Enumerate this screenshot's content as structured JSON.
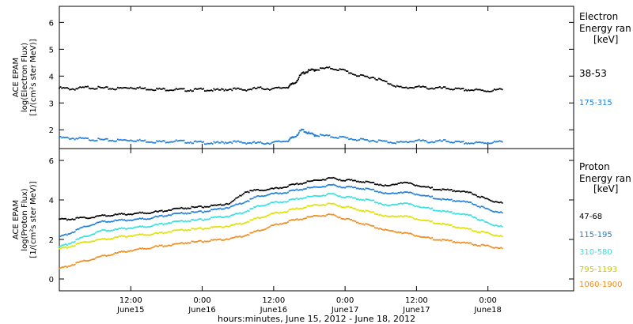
{
  "page": {
    "x_axis_label": "hours:minutes, June 15, 2012 - June 18, 2012"
  },
  "x_ticks": [
    {
      "t": 0.5,
      "time": "12:00",
      "date": "June15"
    },
    {
      "t": 1.0,
      "time": "0:00",
      "date": "June16"
    },
    {
      "t": 1.5,
      "time": "12:00",
      "date": "June16"
    },
    {
      "t": 2.0,
      "time": "0:00",
      "date": "June17"
    },
    {
      "t": 2.5,
      "time": "12:00",
      "date": "June17"
    },
    {
      "t": 3.0,
      "time": "0:00",
      "date": "June18"
    }
  ],
  "chart_data": [
    {
      "type": "scatter",
      "title": "",
      "xlabel": "hours:minutes, June 15, 2012 - June 18, 2012",
      "ylabel_lines": [
        "ACE EPAM",
        "log(Electron Flux)",
        "[1/(cm²s ster MeV)]"
      ],
      "legend_title_lines": [
        "Electron",
        "Energy ran",
        "[keV]"
      ],
      "x_unit": "days since June 15, 2012 00:00",
      "xlim": [
        0.0,
        3.6
      ],
      "ylim": [
        1.3,
        6.6
      ],
      "yticks": [
        2,
        3,
        4,
        5,
        6
      ],
      "grid": false,
      "series": [
        {
          "name": "38-53",
          "color": "#000000",
          "x": [
            0.0,
            0.1,
            0.2,
            0.3,
            0.4,
            0.5,
            0.6,
            0.7,
            0.8,
            0.9,
            1.0,
            1.1,
            1.2,
            1.3,
            1.4,
            1.5,
            1.6,
            1.65,
            1.7,
            1.75,
            1.8,
            1.9,
            2.0,
            2.1,
            2.2,
            2.3,
            2.4,
            2.5,
            2.6,
            2.7,
            2.8,
            2.9,
            3.0,
            3.1
          ],
          "values": [
            3.55,
            3.52,
            3.58,
            3.55,
            3.53,
            3.58,
            3.53,
            3.51,
            3.5,
            3.48,
            3.5,
            3.47,
            3.52,
            3.49,
            3.55,
            3.52,
            3.6,
            3.75,
            4.1,
            4.2,
            4.25,
            4.3,
            4.2,
            4.0,
            3.95,
            3.75,
            3.55,
            3.6,
            3.55,
            3.55,
            3.5,
            3.48,
            3.45,
            3.5
          ]
        },
        {
          "name": "175-315",
          "color": "#1f7fd8",
          "x": [
            0.0,
            0.1,
            0.2,
            0.3,
            0.4,
            0.5,
            0.6,
            0.7,
            0.8,
            0.9,
            1.0,
            1.1,
            1.2,
            1.3,
            1.4,
            1.5,
            1.6,
            1.65,
            1.7,
            1.75,
            1.8,
            1.9,
            2.0,
            2.1,
            2.2,
            2.3,
            2.4,
            2.5,
            2.6,
            2.7,
            2.8,
            2.9,
            3.0,
            3.1
          ],
          "values": [
            1.7,
            1.68,
            1.65,
            1.62,
            1.6,
            1.62,
            1.58,
            1.55,
            1.58,
            1.55,
            1.52,
            1.5,
            1.55,
            1.52,
            1.5,
            1.52,
            1.6,
            1.75,
            2.0,
            1.85,
            1.8,
            1.75,
            1.7,
            1.62,
            1.6,
            1.55,
            1.52,
            1.6,
            1.55,
            1.58,
            1.52,
            1.5,
            1.52,
            1.55
          ]
        }
      ]
    },
    {
      "type": "scatter",
      "title": "",
      "xlabel": "hours:minutes, June 15, 2012 - June 18, 2012",
      "ylabel_lines": [
        "ACE EPAM",
        "log(Proton Flux)",
        "[1/(cm²s ster MeV)]"
      ],
      "legend_title_lines": [
        "Proton",
        "Energy ran",
        "[keV]"
      ],
      "x_unit": "days since June 15, 2012 00:00",
      "xlim": [
        0.0,
        3.6
      ],
      "ylim": [
        -0.6,
        6.6
      ],
      "yticks": [
        0,
        2,
        4,
        6
      ],
      "grid": false,
      "series": [
        {
          "name": "47-68",
          "color": "#000000",
          "x": [
            0.0,
            0.1,
            0.2,
            0.3,
            0.4,
            0.5,
            0.6,
            0.7,
            0.8,
            0.9,
            1.0,
            1.1,
            1.2,
            1.3,
            1.4,
            1.5,
            1.6,
            1.7,
            1.8,
            1.9,
            2.0,
            2.1,
            2.2,
            2.3,
            2.4,
            2.5,
            2.6,
            2.7,
            2.8,
            2.9,
            3.0,
            3.1
          ],
          "values": [
            3.0,
            3.05,
            3.1,
            3.2,
            3.25,
            3.3,
            3.35,
            3.4,
            3.55,
            3.6,
            3.65,
            3.7,
            3.85,
            4.4,
            4.5,
            4.55,
            4.7,
            4.85,
            5.0,
            5.1,
            5.0,
            4.95,
            4.85,
            4.7,
            4.9,
            4.75,
            4.6,
            4.5,
            4.45,
            4.3,
            4.0,
            3.85
          ]
        },
        {
          "name": "115-195",
          "color": "#1f7fd8",
          "x": [
            0.0,
            0.1,
            0.2,
            0.3,
            0.4,
            0.5,
            0.6,
            0.7,
            0.8,
            0.9,
            1.0,
            1.1,
            1.2,
            1.3,
            1.4,
            1.5,
            1.6,
            1.7,
            1.8,
            1.9,
            2.0,
            2.1,
            2.2,
            2.3,
            2.4,
            2.5,
            2.6,
            2.7,
            2.8,
            2.9,
            3.0,
            3.1
          ],
          "values": [
            2.1,
            2.4,
            2.7,
            2.9,
            2.95,
            3.0,
            3.05,
            3.15,
            3.3,
            3.35,
            3.4,
            3.5,
            3.65,
            3.9,
            4.2,
            4.3,
            4.4,
            4.55,
            4.65,
            4.75,
            4.65,
            4.6,
            4.5,
            4.3,
            4.4,
            4.3,
            4.15,
            4.0,
            3.95,
            3.8,
            3.5,
            3.35
          ]
        },
        {
          "name": "310-580",
          "color": "#33e0e0",
          "x": [
            0.0,
            0.1,
            0.2,
            0.3,
            0.4,
            0.5,
            0.6,
            0.7,
            0.8,
            0.9,
            1.0,
            1.1,
            1.2,
            1.3,
            1.4,
            1.5,
            1.6,
            1.7,
            1.8,
            1.9,
            2.0,
            2.1,
            2.2,
            2.3,
            2.4,
            2.5,
            2.6,
            2.7,
            2.8,
            2.9,
            3.0,
            3.1
          ],
          "values": [
            1.6,
            1.9,
            2.2,
            2.45,
            2.5,
            2.6,
            2.65,
            2.75,
            2.9,
            2.95,
            3.0,
            3.1,
            3.2,
            3.4,
            3.7,
            3.85,
            3.95,
            4.1,
            4.2,
            4.3,
            4.15,
            4.05,
            3.95,
            3.7,
            3.85,
            3.7,
            3.55,
            3.4,
            3.3,
            3.15,
            2.8,
            2.65
          ]
        },
        {
          "name": "795-1193",
          "color": "#e0e000",
          "x": [
            0.0,
            0.1,
            0.2,
            0.3,
            0.4,
            0.5,
            0.6,
            0.7,
            0.8,
            0.9,
            1.0,
            1.1,
            1.2,
            1.3,
            1.4,
            1.5,
            1.6,
            1.7,
            1.8,
            1.9,
            2.0,
            2.1,
            2.2,
            2.3,
            2.4,
            2.5,
            2.6,
            2.7,
            2.8,
            2.9,
            3.0,
            3.1
          ],
          "values": [
            1.5,
            1.7,
            1.9,
            2.0,
            2.1,
            2.2,
            2.25,
            2.3,
            2.45,
            2.5,
            2.55,
            2.6,
            2.7,
            2.85,
            3.1,
            3.3,
            3.45,
            3.6,
            3.75,
            3.8,
            3.65,
            3.5,
            3.35,
            3.15,
            3.2,
            3.05,
            2.9,
            2.75,
            2.6,
            2.45,
            2.3,
            2.15
          ]
        },
        {
          "name": "1060-1900",
          "color": "#f08c1e",
          "x": [
            0.0,
            0.1,
            0.2,
            0.3,
            0.4,
            0.5,
            0.6,
            0.7,
            0.8,
            0.9,
            1.0,
            1.1,
            1.2,
            1.3,
            1.4,
            1.5,
            1.6,
            1.7,
            1.8,
            1.9,
            2.0,
            2.1,
            2.2,
            2.3,
            2.4,
            2.5,
            2.6,
            2.7,
            2.8,
            2.9,
            3.0,
            3.1
          ],
          "values": [
            0.5,
            0.75,
            0.95,
            1.15,
            1.3,
            1.45,
            1.55,
            1.65,
            1.75,
            1.85,
            1.9,
            1.95,
            2.05,
            2.2,
            2.45,
            2.7,
            2.9,
            3.05,
            3.2,
            3.25,
            3.05,
            2.85,
            2.65,
            2.45,
            2.35,
            2.2,
            2.05,
            1.95,
            1.85,
            1.75,
            1.65,
            1.55
          ]
        }
      ]
    }
  ]
}
